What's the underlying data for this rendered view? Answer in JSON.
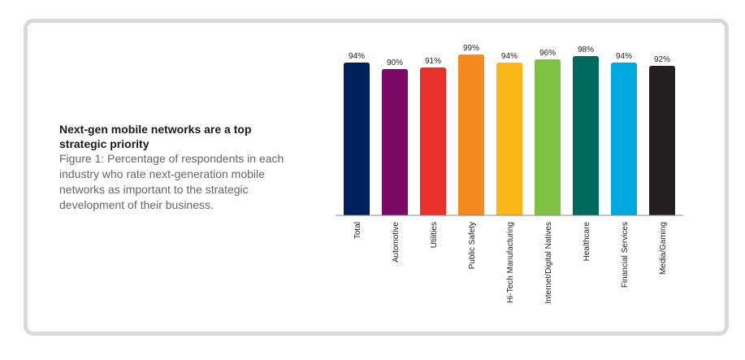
{
  "caption": {
    "title": "Next-gen mobile networks are a top strategic priority",
    "text": "Figure 1: Percentage of respondents in each industry who rate next-generation mobile networks as important to the strategic development of their business."
  },
  "chart_data": {
    "type": "bar",
    "title": "",
    "xlabel": "",
    "ylabel": "",
    "grid": false,
    "ylim": [
      0,
      100
    ],
    "categories": [
      "Total",
      "Automotive",
      "Utilities",
      "Public Safety",
      "Hi-Tech Manufacturing",
      "Internet/Digital Natives",
      "Healthcare",
      "Financial Services",
      "Media/Gaming"
    ],
    "values": [
      94,
      90,
      91,
      99,
      94,
      96,
      98,
      94,
      92
    ],
    "value_labels": [
      "94%",
      "90%",
      "91%",
      "99%",
      "94%",
      "96%",
      "98%",
      "94%",
      "92%"
    ],
    "colors": [
      "#00205b",
      "#7b0a66",
      "#e8312a",
      "#f58a1f",
      "#fbb717",
      "#7dc242",
      "#00695e",
      "#00a9df",
      "#231f20"
    ],
    "axis_color": "#888888"
  }
}
